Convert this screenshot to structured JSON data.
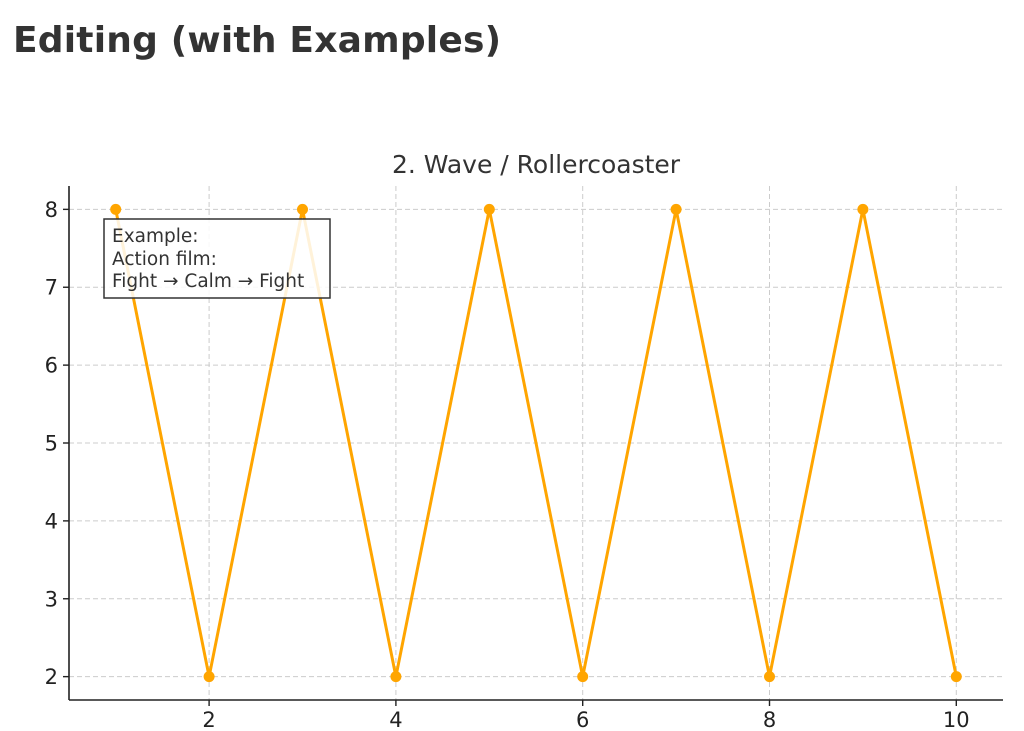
{
  "page": {
    "title": "Editing (with Examples)"
  },
  "chart_data": {
    "type": "line",
    "title": "2. Wave / Rollercoaster",
    "xlabel": "",
    "ylabel": "",
    "x": [
      1,
      2,
      3,
      4,
      5,
      6,
      7,
      8,
      9,
      10
    ],
    "series": [
      {
        "values": [
          8,
          2,
          8,
          2,
          8,
          2,
          8,
          2,
          8,
          2
        ],
        "color": "#FFA500"
      }
    ],
    "xlim": [
      0.5,
      10.5
    ],
    "ylim": [
      1.7,
      8.3
    ],
    "xticks": [
      2,
      4,
      6,
      8,
      10
    ],
    "yticks": [
      2,
      3,
      4,
      5,
      6,
      7,
      8
    ],
    "grid": true,
    "grid_style": "dashed",
    "annotation": {
      "lines": [
        "Example:",
        "Action film:",
        "Fight → Calm → Fight"
      ],
      "placement": "top-left"
    }
  }
}
